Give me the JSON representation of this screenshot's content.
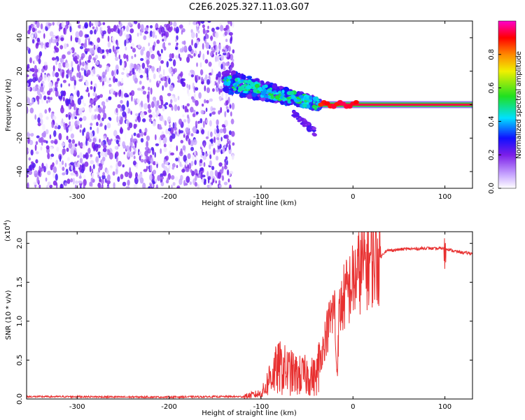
{
  "title": "C2E6.2025.327.11.03.G07",
  "chart_data": [
    {
      "type": "heatmap",
      "name": "spectrogram",
      "xlabel": "Height of straight line (km)",
      "ylabel": "Frequency (Hz)",
      "xlim": [
        -355,
        130
      ],
      "ylim": [
        -50,
        50
      ],
      "xticks": [
        -300,
        -200,
        -100,
        0,
        100
      ],
      "xtick_labels": [
        "-300",
        "-200",
        "-100",
        "0",
        "100"
      ],
      "yticks": [
        -40,
        -20,
        0,
        20,
        40
      ],
      "ytick_labels": [
        "-40",
        "-20",
        "0",
        "20",
        "40"
      ],
      "colorbar": {
        "label": "Normalized spectral amplitude",
        "range": [
          0,
          1
        ],
        "ticks": [
          0.0,
          0.2,
          0.4,
          0.6,
          0.8
        ],
        "tick_labels": [
          "0.0",
          "0.2",
          "0.4",
          "0.6",
          "0.8"
        ],
        "colors": [
          "#ffffff",
          "#c9a8ff",
          "#7b1ee8",
          "#1010ff",
          "#00e0ff",
          "#20e020",
          "#f0f000",
          "#ff8800",
          "#ff0000",
          "#ff00cc"
        ]
      },
      "regions": [
        {
          "name": "noise",
          "x_range": [
            -355,
            -130
          ],
          "freq_range": [
            -50,
            50
          ],
          "amplitude": [
            0.0,
            0.2
          ]
        },
        {
          "name": "signal-tail",
          "x_range": [
            -140,
            -35
          ],
          "freq_center_start": 14,
          "freq_center_end": 0,
          "amplitude": [
            0.2,
            0.55
          ]
        },
        {
          "name": "signal-branch",
          "x_range": [
            -65,
            -40
          ],
          "freq_center_start": -5,
          "freq_center_end": -17,
          "amplitude": [
            0.2,
            0.3
          ]
        },
        {
          "name": "carrier",
          "x_range": [
            -35,
            130
          ],
          "freq_center": 0,
          "amplitude": [
            0.9,
            1.0
          ]
        }
      ]
    },
    {
      "type": "line",
      "name": "snr",
      "xlabel": "Height of straight line (km)",
      "ylabel": "SNR (10 * v/v)",
      "y_multiplier": "(x10",
      "y_multiplier_exp": "4",
      "y_multiplier_close": ")",
      "xlim": [
        -355,
        130
      ],
      "ylim": [
        0,
        2.15
      ],
      "xticks": [
        -300,
        -200,
        -100,
        0,
        100
      ],
      "xtick_labels": [
        "-300",
        "-200",
        "-100",
        "0",
        "100"
      ],
      "yticks": [
        0.0,
        0.5,
        1.0,
        1.5,
        2.0
      ],
      "ytick_labels": [
        "0.0",
        "0.5",
        "1.0",
        "1.5",
        "2.0"
      ],
      "color": "#e83030",
      "series": [
        {
          "name": "SNR",
          "x": [
            -355,
            -300,
            -250,
            -200,
            -150,
            -120,
            -110,
            -100,
            -95,
            -90,
            -80,
            -70,
            -60,
            -50,
            -40,
            -30,
            -25,
            -20,
            -18,
            -17,
            -15,
            -10,
            -5,
            0,
            5,
            10,
            20,
            30,
            35,
            40,
            50,
            60,
            70,
            80,
            90,
            100,
            110,
            120,
            130
          ],
          "y": [
            0.03,
            0.03,
            0.025,
            0.025,
            0.03,
            0.03,
            0.05,
            0.07,
            0.15,
            0.3,
            0.4,
            0.35,
            0.3,
            0.3,
            0.28,
            0.8,
            1.0,
            1.2,
            0.4,
            0.4,
            1.1,
            1.3,
            1.4,
            1.5,
            1.6,
            1.7,
            1.78,
            1.82,
            1.9,
            1.91,
            1.92,
            1.93,
            1.93,
            1.94,
            1.93,
            1.94,
            1.9,
            1.88,
            1.87
          ]
        }
      ]
    }
  ]
}
